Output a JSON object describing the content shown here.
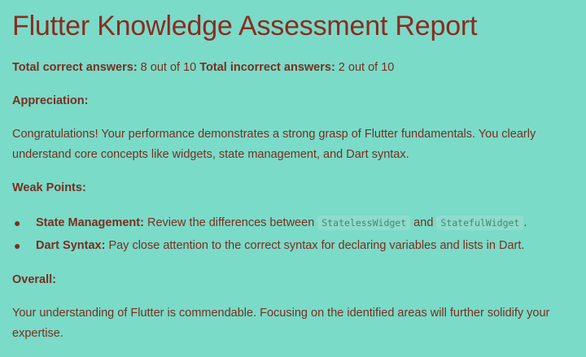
{
  "report": {
    "title": "Flutter Knowledge Assessment Report",
    "correct_label": "Total correct answers:",
    "correct_value": " 8 out of 10 ",
    "incorrect_label": "Total incorrect answers:",
    "incorrect_value": " 2 out of 10",
    "appreciation_heading": "Appreciation:",
    "appreciation_text": "Congratulations! Your performance demonstrates a strong grasp of Flutter fundamentals. You clearly understand core concepts like widgets, state management, and Dart syntax.",
    "weak_heading": "Weak Points:",
    "weak_points": [
      {
        "label": "State Management:",
        "text_before": " Review the differences between ",
        "code1": "StatelessWidget",
        "text_mid": " and ",
        "code2": "StatefulWidget",
        "text_after": "."
      },
      {
        "label": "Dart Syntax:",
        "text": " Pay close attention to the correct syntax for declaring variables and lists in Dart."
      }
    ],
    "overall_heading": "Overall:",
    "overall_text": "Your understanding of Flutter is commendable. Focusing on the identified areas will further solidify your expertise."
  },
  "colors": {
    "background": "#7adbc8",
    "title": "#8b2b20",
    "text": "#7a2e1f",
    "code_text": "#3d8a6e",
    "code_bg": "#8fdccd"
  }
}
